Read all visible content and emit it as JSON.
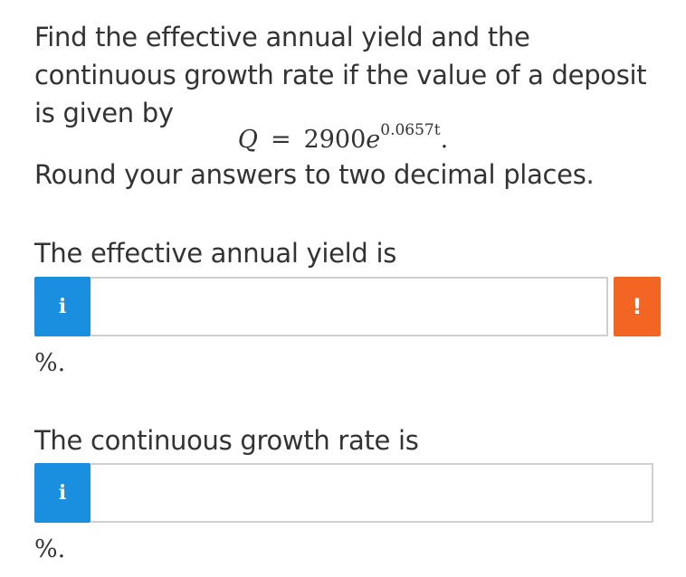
{
  "question": {
    "text": "Find the effective annual yield and the continuous growth rate if the value of a deposit is given by",
    "equation": {
      "lhs": "Q",
      "equals": "=",
      "coefficient": "2900",
      "base": "e",
      "exponent": "0.0657t",
      "trailing": "."
    },
    "rounding_instruction": "Round your answers to two decimal places."
  },
  "part1": {
    "prompt": "The effective annual yield is",
    "info_label": "i",
    "input_value": "",
    "alert_label": "!",
    "unit": "%."
  },
  "part2": {
    "prompt": "The continuous growth rate is",
    "info_label": "i",
    "input_value": "",
    "unit": "%."
  },
  "colors": {
    "info_button": "#1a8fe0",
    "alert_badge": "#f26522",
    "input_border": "#cfcfcf",
    "text": "#333333"
  }
}
